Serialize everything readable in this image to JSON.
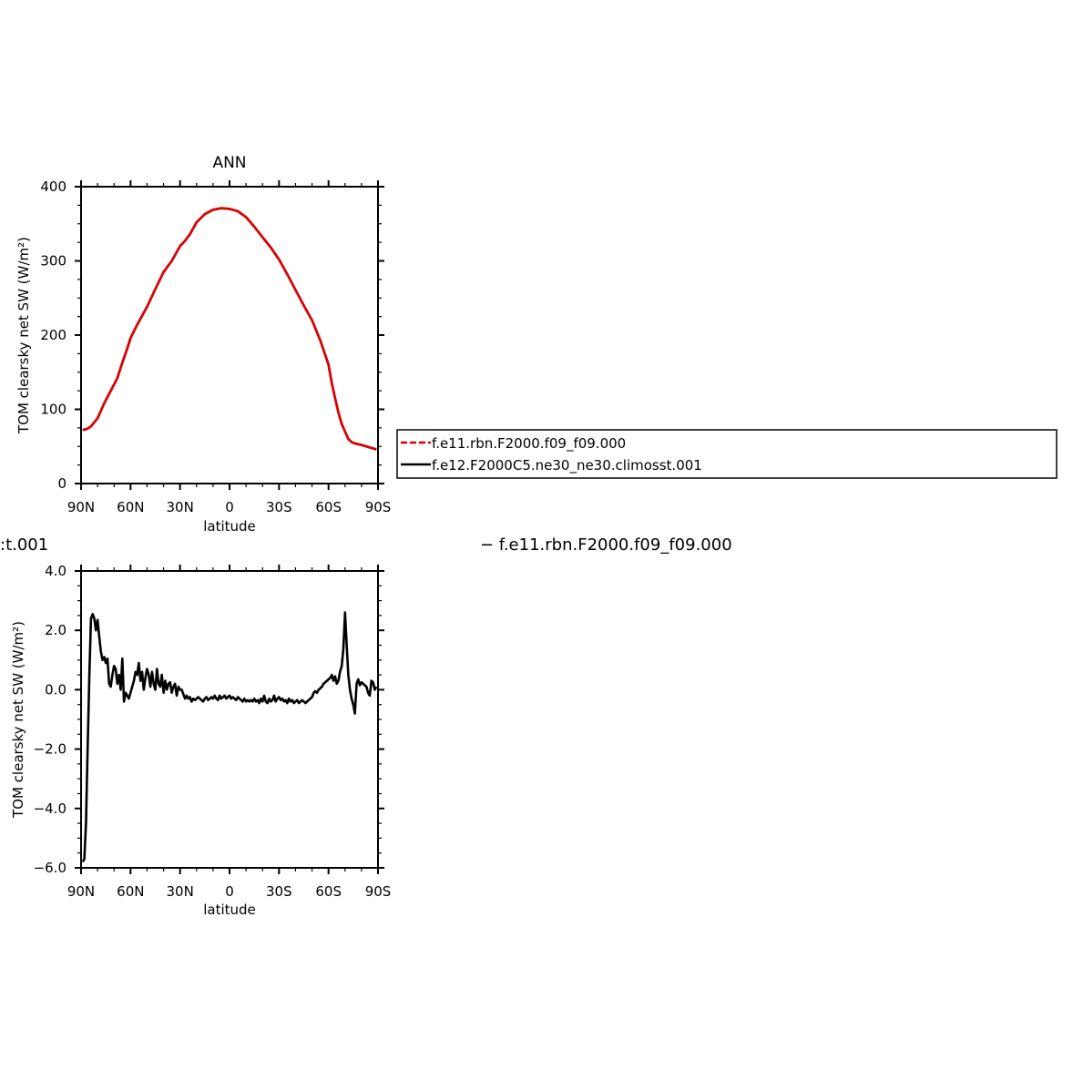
{
  "chart_data": [
    {
      "type": "line",
      "title": "ANN",
      "xlabel": "latitude",
      "ylabel": "TOM clearsky net SW (W/m²)",
      "xlim": [
        90,
        -90
      ],
      "ylim": [
        0,
        400
      ],
      "x_ticks": [
        90,
        60,
        30,
        0,
        -30,
        -60,
        -90
      ],
      "x_tick_labels": [
        "90N",
        "60N",
        "30N",
        "0",
        "30S",
        "60S",
        "90S"
      ],
      "y_ticks": [
        0,
        100,
        200,
        300,
        400
      ],
      "y_tick_labels": [
        "0",
        "100",
        "200",
        "300",
        "400"
      ],
      "legend_position": "right, outside plot",
      "series": [
        {
          "name": "f.e11.rbn.F2000.f09_f09.000",
          "color": "#e00000",
          "dash": "dashed",
          "x": [
            89,
            86,
            84,
            80,
            76,
            72,
            68,
            65,
            62,
            60,
            56,
            50,
            45,
            40,
            35,
            30,
            27,
            24,
            20,
            15,
            10,
            5,
            0,
            -5,
            -10,
            -15,
            -20,
            -25,
            -30,
            -35,
            -40,
            -45,
            -50,
            -55,
            -57,
            -60,
            -62,
            -64,
            -66,
            -68,
            -70,
            -72,
            -74,
            -76,
            -78,
            -80,
            -83,
            -86,
            -89
          ],
          "y": [
            72,
            74,
            77,
            88,
            108,
            125,
            142,
            163,
            182,
            196,
            214,
            238,
            262,
            285,
            300,
            320,
            327,
            336,
            352,
            363,
            369,
            371,
            370,
            367,
            359,
            346,
            332,
            318,
            302,
            282,
            261,
            240,
            220,
            193,
            180,
            160,
            135,
            115,
            96,
            80,
            70,
            60,
            56,
            54,
            53,
            52,
            50,
            48,
            46
          ]
        },
        {
          "name": "f.e12.F2000C5.ne30_ne30.climosst.001",
          "color": "#000000",
          "dash": "solid",
          "x": [
            89,
            86,
            84,
            80,
            76,
            72,
            68,
            65,
            62,
            60,
            56,
            50,
            45,
            40,
            35,
            30,
            27,
            24,
            20,
            15,
            10,
            5,
            0,
            -5,
            -10,
            -15,
            -20,
            -25,
            -30,
            -35,
            -40,
            -45,
            -50,
            -55,
            -57,
            -60,
            -62,
            -64,
            -66,
            -68,
            -70,
            -72,
            -74,
            -76,
            -78,
            -80,
            -83,
            -86,
            -89
          ],
          "y": [
            72,
            74,
            77,
            88,
            108,
            125,
            142,
            163,
            182,
            196,
            214,
            238,
            262,
            285,
            300,
            320,
            327,
            336,
            352,
            363,
            369,
            371,
            370,
            367,
            359,
            346,
            332,
            318,
            302,
            282,
            261,
            240,
            220,
            193,
            180,
            160,
            135,
            115,
            96,
            80,
            70,
            60,
            56,
            54,
            53,
            52,
            50,
            48,
            46
          ]
        }
      ]
    },
    {
      "type": "line",
      "title": "",
      "xlabel": "latitude",
      "ylabel": "TOM clearsky net SW (W/m²)",
      "xlim": [
        90,
        -90
      ],
      "ylim": [
        -6.0,
        4.0
      ],
      "x_ticks": [
        90,
        60,
        30,
        0,
        -30,
        -60,
        -90
      ],
      "x_tick_labels": [
        "90N",
        "60N",
        "30N",
        "0",
        "30S",
        "60S",
        "90S"
      ],
      "y_ticks": [
        -6,
        -4,
        -2,
        0,
        2,
        4
      ],
      "y_tick_labels": [
        "−6.0",
        "−4.0",
        "−2.0",
        "0.0",
        "2.0",
        "4.0"
      ],
      "series": [
        {
          "color": "#000000",
          "dash": "solid",
          "x": [
            89,
            88,
            87,
            86,
            85,
            84,
            83,
            82,
            81,
            80,
            79,
            78,
            77,
            76,
            75,
            74,
            73,
            72,
            71,
            70,
            69,
            68,
            67,
            66,
            65,
            64,
            63,
            62,
            61,
            60,
            59,
            58,
            57,
            56,
            55,
            54,
            53,
            52,
            51,
            50,
            49,
            48,
            47,
            46,
            45,
            44,
            43,
            42,
            41,
            40,
            39,
            38,
            37,
            36,
            35,
            34,
            33,
            32,
            31,
            30,
            29,
            28,
            27,
            26,
            25,
            24,
            23,
            22,
            21,
            20,
            19,
            18,
            17,
            16,
            15,
            14,
            13,
            12,
            11,
            10,
            9,
            8,
            7,
            6,
            5,
            4,
            3,
            2,
            1,
            0,
            -1,
            -2,
            -3,
            -4,
            -5,
            -6,
            -7,
            -8,
            -9,
            -10,
            -11,
            -12,
            -13,
            -14,
            -15,
            -16,
            -17,
            -18,
            -19,
            -20,
            -21,
            -22,
            -23,
            -24,
            -25,
            -26,
            -27,
            -28,
            -29,
            -30,
            -31,
            -32,
            -33,
            -34,
            -35,
            -36,
            -37,
            -38,
            -39,
            -40,
            -41,
            -42,
            -43,
            -44,
            -45,
            -46,
            -47,
            -48,
            -49,
            -50,
            -51,
            -52,
            -53,
            -54,
            -55,
            -56,
            -57,
            -58,
            -59,
            -60,
            -61,
            -62,
            -63,
            -64,
            -65,
            -66,
            -67,
            -68,
            -69,
            -70,
            -71,
            -72,
            -73,
            -74,
            -75,
            -76,
            -77,
            -78,
            -79,
            -80,
            -81,
            -82,
            -83,
            -84,
            -85,
            -86,
            -87,
            -88,
            -89
          ],
          "y": [
            -5.8,
            -5.7,
            -4.5,
            -2.0,
            0.5,
            2.4,
            2.55,
            2.4,
            2.0,
            2.35,
            1.8,
            1.3,
            1.0,
            1.1,
            0.9,
            1.05,
            0.2,
            0.1,
            0.5,
            0.8,
            0.7,
            0.2,
            0.5,
            0.0,
            1.05,
            -0.4,
            -0.1,
            -0.2,
            -0.3,
            -0.1,
            0.1,
            0.3,
            0.6,
            0.5,
            0.9,
            0.3,
            0.6,
            0.0,
            0.4,
            0.7,
            0.5,
            0.1,
            0.6,
            0.2,
            0.0,
            0.7,
            0.2,
            0.1,
            0.5,
            -0.1,
            0.3,
            0.0,
            0.2,
            0.25,
            -0.1,
            0.1,
            0.2,
            -0.2,
            0.1,
            0.0,
            0.0,
            -0.15,
            -0.3,
            -0.2,
            -0.3,
            -0.25,
            -0.4,
            -0.3,
            -0.35,
            -0.3,
            -0.25,
            -0.3,
            -0.35,
            -0.4,
            -0.3,
            -0.25,
            -0.35,
            -0.3,
            -0.25,
            -0.3,
            -0.2,
            -0.3,
            -0.35,
            -0.2,
            -0.3,
            -0.25,
            -0.2,
            -0.3,
            -0.25,
            -0.2,
            -0.3,
            -0.25,
            -0.3,
            -0.35,
            -0.25,
            -0.3,
            -0.35,
            -0.4,
            -0.3,
            -0.4,
            -0.35,
            -0.4,
            -0.35,
            -0.4,
            -0.3,
            -0.4,
            -0.35,
            -0.45,
            -0.3,
            -0.4,
            -0.2,
            -0.4,
            -0.45,
            -0.3,
            -0.4,
            -0.35,
            -0.2,
            -0.4,
            -0.3,
            -0.25,
            -0.35,
            -0.3,
            -0.4,
            -0.35,
            -0.45,
            -0.3,
            -0.4,
            -0.35,
            -0.45,
            -0.4,
            -0.35,
            -0.45,
            -0.4,
            -0.35,
            -0.4,
            -0.45,
            -0.4,
            -0.35,
            -0.3,
            -0.25,
            -0.1,
            -0.05,
            -0.1,
            0.0,
            0.05,
            0.1,
            0.2,
            0.25,
            0.3,
            0.35,
            0.4,
            0.5,
            0.3,
            0.45,
            0.2,
            0.3,
            0.6,
            0.8,
            1.4,
            2.6,
            1.5,
            0.5,
            0.0,
            -0.3,
            -0.5,
            -0.8,
            0.2,
            0.35,
            0.15,
            0.25,
            0.2,
            0.15,
            0.1,
            -0.1,
            -0.2,
            0.3,
            0.25,
            0.0,
            0.1
          ]
        }
      ]
    }
  ],
  "legend": {
    "items": [
      {
        "label": "f.e11.rbn.F2000.f09_f09.000",
        "color": "#e00000",
        "dash": "dashed"
      },
      {
        "label": "f.e12.F2000C5.ne30_ne30.climosst.001",
        "color": "#000000",
        "dash": "solid"
      }
    ]
  },
  "diff_title": {
    "left_fragment": ":t.001",
    "right": "− f.e11.rbn.F2000.f09_f09.000"
  }
}
